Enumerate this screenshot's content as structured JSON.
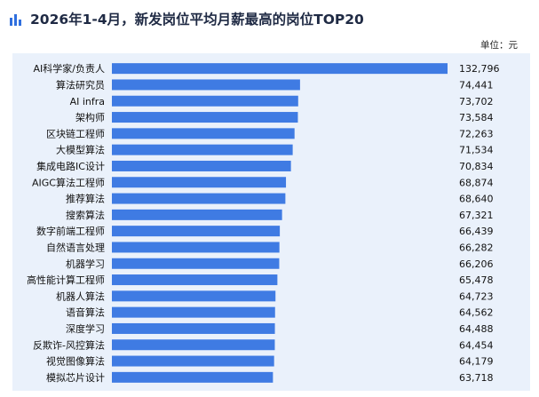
{
  "header": {
    "title": "2026年1-4月，新发岗位平均月薪最高的岗位TOP20",
    "unit_label": "单位：元"
  },
  "colors": {
    "bar": "#3f7be3",
    "panel_bg": "#eaf1fb",
    "title_icon": "#2f6fde"
  },
  "chart_data": {
    "type": "bar",
    "orientation": "horizontal",
    "title": "2026年1-4月，新发岗位平均月薪最高的岗位TOP20",
    "unit": "单位：元",
    "xlabel": "",
    "ylabel": "",
    "xlim": [
      0,
      140000
    ],
    "grid": false,
    "legend": "none",
    "categories": [
      "AI科学家/负责人",
      "算法研究员",
      "AI infra",
      "架构师",
      "区块链工程师",
      "大模型算法",
      "集成电路IC设计",
      "AIGC算法工程师",
      "推荐算法",
      "搜索算法",
      "数字前端工程师",
      "自然语言处理",
      "机器学习",
      "高性能计算工程师",
      "机器人算法",
      "语音算法",
      "深度学习",
      "反欺诈-风控算法",
      "视觉图像算法",
      "模拟芯片设计"
    ],
    "values": [
      132796,
      74441,
      73702,
      73584,
      72263,
      71534,
      70834,
      68874,
      68640,
      67321,
      66439,
      66282,
      66206,
      65478,
      64723,
      64562,
      64488,
      64454,
      64179,
      63718
    ],
    "value_labels": [
      "132,796",
      "74,441",
      "73,702",
      "73,584",
      "72,263",
      "71,534",
      "70,834",
      "68,874",
      "68,640",
      "67,321",
      "66,439",
      "66,282",
      "66,206",
      "65,478",
      "64,723",
      "64,562",
      "64,488",
      "64,454",
      "64,179",
      "63,718"
    ]
  }
}
